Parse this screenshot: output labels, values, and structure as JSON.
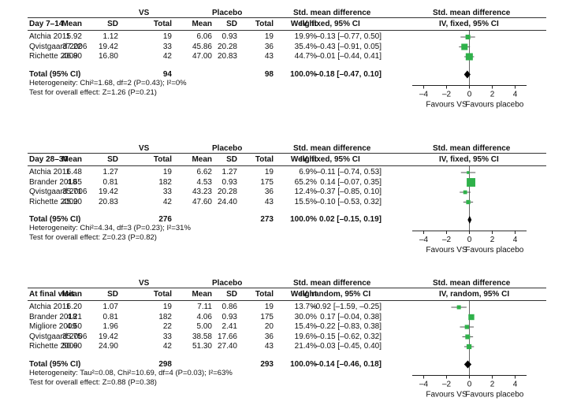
{
  "scale": {
    "min": -5,
    "max": 5,
    "ticks": [
      "-4",
      "-2",
      "0",
      "2",
      "4"
    ]
  },
  "colors": {
    "marker": "#2fb14a",
    "diamond": "#000000"
  },
  "col_headers": {
    "vs": "VS",
    "placebo": "Placebo",
    "mean": "Mean",
    "sd": "SD",
    "total": "Total",
    "weight": "Weight",
    "smd": "Std. mean difference",
    "total_label": "Total (95% CI)"
  },
  "chart_data": [
    {
      "type": "forest",
      "title": "Day 7–14",
      "method": "IV, fixed, 95% CI",
      "studies": [
        {
          "name": "Atchia 2011",
          "vs_mean": "5.92",
          "vs_sd": "1.12",
          "vs_total": "19",
          "pl_mean": "6.06",
          "pl_sd": "0.93",
          "pl_total": "19",
          "weight": "19.9%",
          "ci": "–0.13 [–0.77, 0.50]",
          "est": -0.13,
          "lo": -0.77,
          "hi": 0.5,
          "w": 19.9
        },
        {
          "name": "Qvistgaard 2006",
          "vs_mean": "37.22",
          "vs_sd": "19.42",
          "vs_total": "33",
          "pl_mean": "45.86",
          "pl_sd": "20.28",
          "pl_total": "36",
          "weight": "35.4%",
          "ci": "–0.43 [–0.91, 0.05]",
          "est": -0.43,
          "lo": -0.91,
          "hi": 0.05,
          "w": 35.4
        },
        {
          "name": "Richette 2009",
          "vs_mean": "46.80",
          "vs_sd": "16.80",
          "vs_total": "42",
          "pl_mean": "47.00",
          "pl_sd": "20.83",
          "pl_total": "43",
          "weight": "44.7%",
          "ci": "–0.01 [–0.44, 0.41]",
          "est": -0.01,
          "lo": -0.44,
          "hi": 0.41,
          "w": 44.7
        }
      ],
      "total": {
        "vs_total": "94",
        "pl_total": "98",
        "weight": "100.0%",
        "ci": "–0.18 [–0.47, 0.10]",
        "est": -0.18,
        "lo": -0.47,
        "hi": 0.1
      },
      "heterogeneity": "Heterogeneity: Chi²=1.68, df=2 (P=0.43); I²=0%",
      "overall": "Test for overall effect: Z=1.26 (P=0.21)",
      "favours_left": "Favours VS",
      "favours_right": "Favours placebo"
    },
    {
      "type": "forest",
      "title": "Day 28–30",
      "method": "IV, fixed, 95% CI",
      "studies": [
        {
          "name": "Atchia 2011",
          "vs_mean": "6.48",
          "vs_sd": "1.27",
          "vs_total": "19",
          "pl_mean": "6.62",
          "pl_sd": "1.27",
          "pl_total": "19",
          "weight": "6.9%",
          "ci": "–0.11 [–0.74, 0.53]",
          "est": -0.11,
          "lo": -0.74,
          "hi": 0.53,
          "w": 6.9
        },
        {
          "name": "Brander 2018",
          "vs_mean": "4.65",
          "vs_sd": "0.81",
          "vs_total": "182",
          "pl_mean": "4.53",
          "pl_sd": "0.93",
          "pl_total": "175",
          "weight": "65.2%",
          "ci": "0.14 [–0.07, 0.35]",
          "est": 0.14,
          "lo": -0.07,
          "hi": 0.35,
          "w": 65.2
        },
        {
          "name": "Qvistgaard 2006",
          "vs_mean": "35.71",
          "vs_sd": "19.42",
          "vs_total": "33",
          "pl_mean": "43.23",
          "pl_sd": "20.28",
          "pl_total": "36",
          "weight": "12.4%",
          "ci": "–0.37 [–0.85, 0.10]",
          "est": -0.37,
          "lo": -0.85,
          "hi": 0.1,
          "w": 12.4
        },
        {
          "name": "Richette 2009",
          "vs_mean": "45.20",
          "vs_sd": "20.83",
          "vs_total": "42",
          "pl_mean": "47.60",
          "pl_sd": "24.40",
          "pl_total": "43",
          "weight": "15.5%",
          "ci": "–0.10 [–0.53, 0.32]",
          "est": -0.1,
          "lo": -0.53,
          "hi": 0.32,
          "w": 15.5
        }
      ],
      "total": {
        "vs_total": "276",
        "pl_total": "273",
        "weight": "100.0%",
        "ci": "0.02 [–0.15, 0.19]",
        "est": 0.02,
        "lo": -0.15,
        "hi": 0.19
      },
      "heterogeneity": "Heterogeneity: Chi²=4.34, df=3 (P=0.23); I²=31%",
      "overall": "Test for overall effect: Z=0.23 (P=0.82)",
      "favours_left": "Favours VS",
      "favours_right": "Favours placebo"
    },
    {
      "type": "forest",
      "title": "At final visit",
      "method": "IV, random, 95% CI",
      "studies": [
        {
          "name": "Atchia 2011",
          "vs_mean": "6.20",
          "vs_sd": "1.07",
          "vs_total": "19",
          "pl_mean": "7.11",
          "pl_sd": "0.86",
          "pl_total": "19",
          "weight": "13.7%",
          "ci": "–0.92 [–1.59, –0.25]",
          "est": -0.92,
          "lo": -1.59,
          "hi": -0.25,
          "w": 13.7
        },
        {
          "name": "Brander 2018",
          "vs_mean": "4.21",
          "vs_sd": "0.81",
          "vs_total": "182",
          "pl_mean": "4.06",
          "pl_sd": "0.93",
          "pl_total": "175",
          "weight": "30.0%",
          "ci": "0.17 [–0.04, 0.38]",
          "est": 0.17,
          "lo": -0.04,
          "hi": 0.38,
          "w": 30.0
        },
        {
          "name": "Migliore 2009",
          "vs_mean": "4.50",
          "vs_sd": "1.96",
          "vs_total": "22",
          "pl_mean": "5.00",
          "pl_sd": "2.41",
          "pl_total": "20",
          "weight": "15.4%",
          "ci": "–0.22 [–0.83, 0.38]",
          "est": -0.22,
          "lo": -0.83,
          "hi": 0.38,
          "w": 15.4
        },
        {
          "name": "Qvistgaard 2006",
          "vs_mean": "35.75",
          "vs_sd": "19.42",
          "vs_total": "33",
          "pl_mean": "38.58",
          "pl_sd": "17.66",
          "pl_total": "36",
          "weight": "19.6%",
          "ci": "–0.15 [–0.62, 0.32]",
          "est": -0.15,
          "lo": -0.62,
          "hi": 0.32,
          "w": 19.6
        },
        {
          "name": "Richette 2009",
          "vs_mean": "50.60",
          "vs_sd": "24.90",
          "vs_total": "42",
          "pl_mean": "51.30",
          "pl_sd": "27.40",
          "pl_total": "43",
          "weight": "21.4%",
          "ci": "–0.03 [–0.45, 0.40]",
          "est": -0.03,
          "lo": -0.45,
          "hi": 0.4,
          "w": 21.4
        }
      ],
      "total": {
        "vs_total": "298",
        "pl_total": "293",
        "weight": "100.0%",
        "ci": "–0.14 [–0.46, 0.18]",
        "est": -0.14,
        "lo": -0.46,
        "hi": 0.18
      },
      "heterogeneity": "Heterogeneity: Tau²=0.08, Chi²=10.69, df=4 (P=0.03); I²=63%",
      "overall": "Test for overall effect: Z=0.88 (P=0.38)",
      "favours_left": "Favours VS",
      "favours_right": "Favours placebo"
    }
  ]
}
